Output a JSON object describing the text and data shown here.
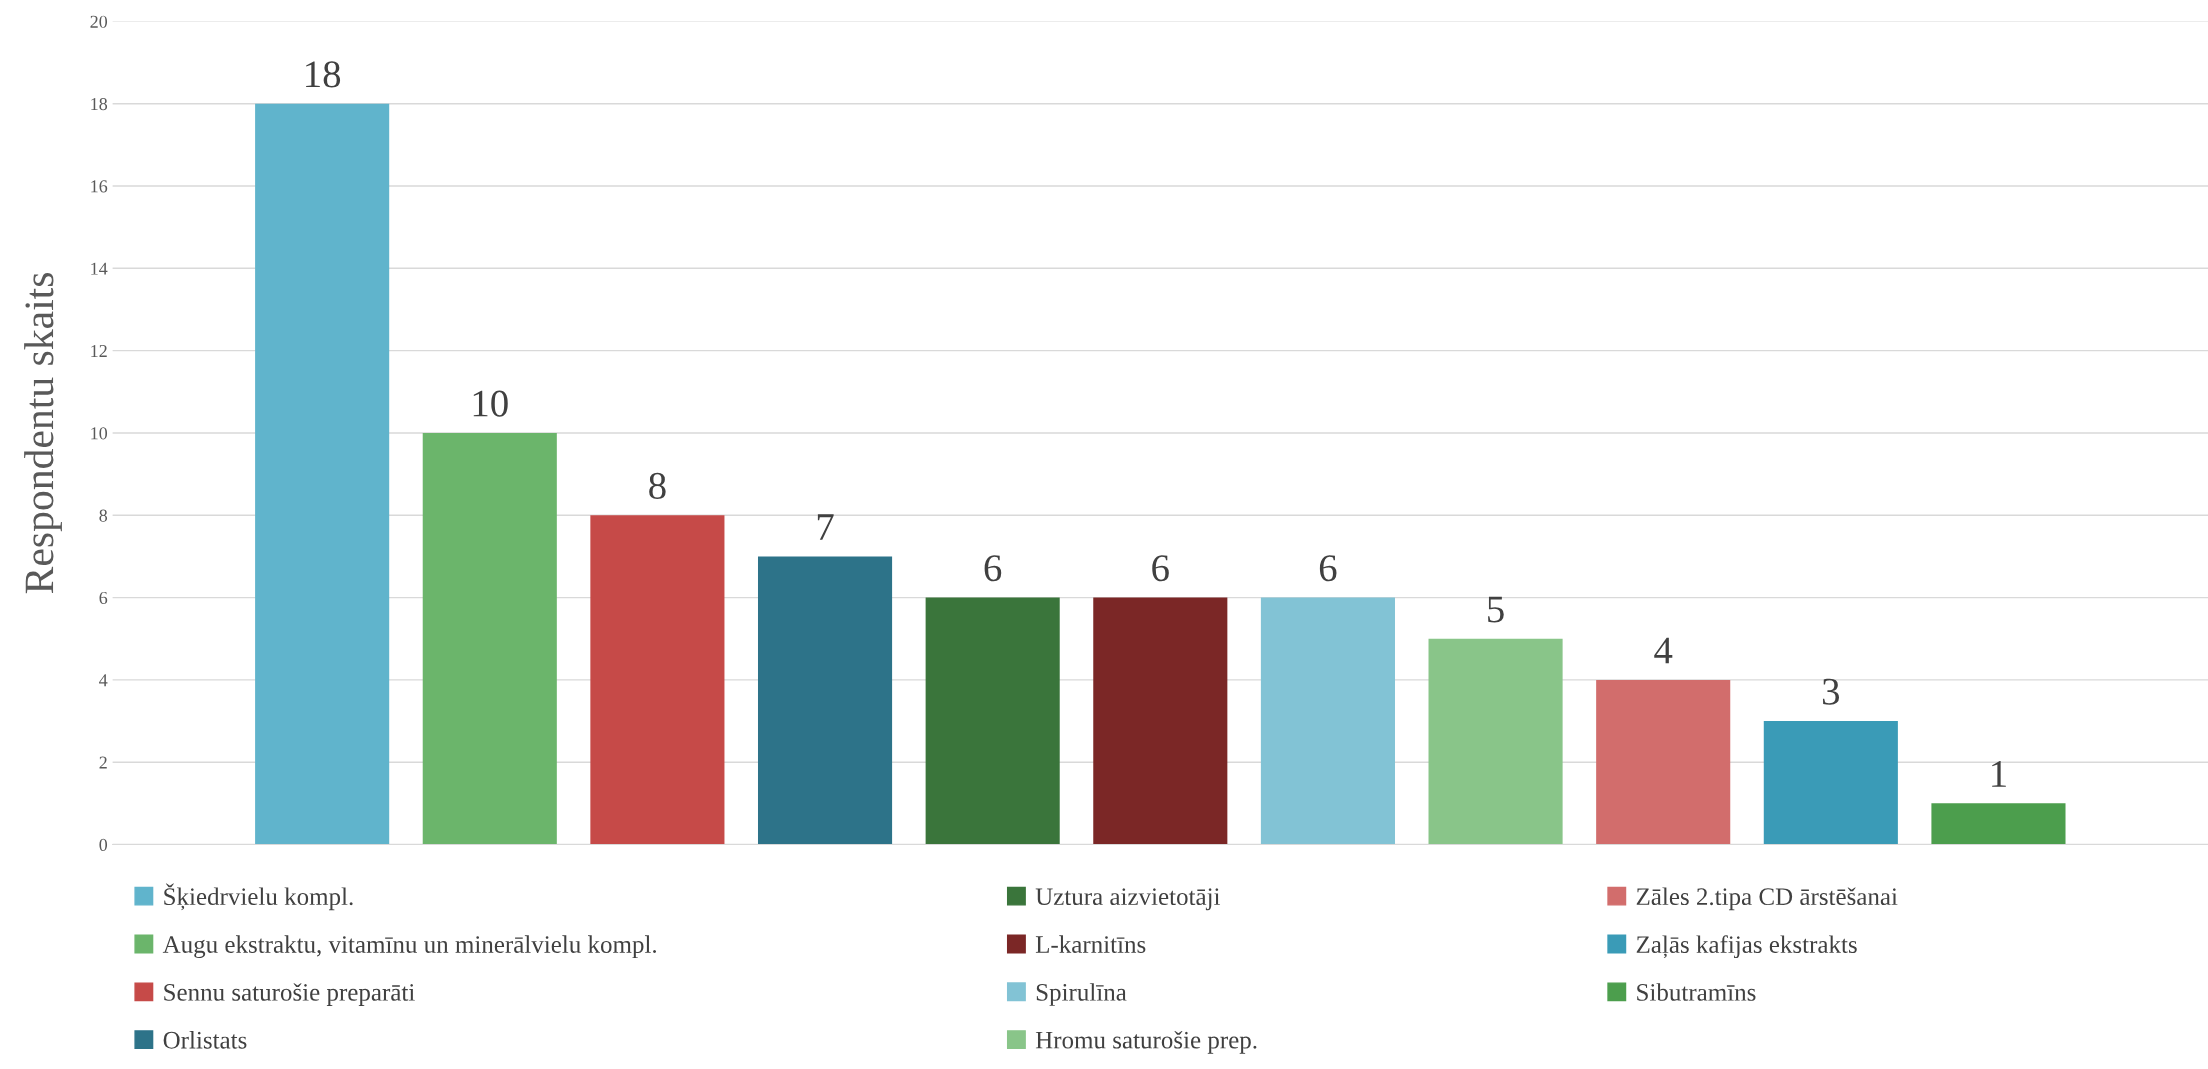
{
  "chart_data": {
    "type": "bar",
    "ylabel": "Respondentu skaits",
    "categories": [
      null
    ],
    "series": [
      {
        "name": "Šķiedrvielu kompl.",
        "color": "#60b4cc",
        "values": [
          18
        ]
      },
      {
        "name": "Augu ekstraktu, vitamīnu un minerālvielu kompl.",
        "color": "#6bb56b",
        "values": [
          10
        ]
      },
      {
        "name": "Sennu saturošie preparāti",
        "color": "#c64a48",
        "values": [
          8
        ]
      },
      {
        "name": "Orlistats",
        "color": "#2d7389",
        "values": [
          7
        ]
      },
      {
        "name": "Uztura aizvietotāji",
        "color": "#3a753b",
        "values": [
          6
        ]
      },
      {
        "name": "L-karnitīns",
        "color": "#7b2726",
        "values": [
          6
        ]
      },
      {
        "name": "Spirulīna",
        "color": "#82c3d5",
        "values": [
          6
        ]
      },
      {
        "name": "Hromu saturošie prep.",
        "color": "#89c589",
        "values": [
          5
        ]
      },
      {
        "name": "Zāles 2.tipa CD ārstēšanai",
        "color": "#d26d6c",
        "values": [
          4
        ]
      },
      {
        "name": "Zaļās kafijas ekstrakts",
        "color": "#3a9bb7",
        "values": [
          3
        ]
      },
      {
        "name": "Sibutramīns",
        "color": "#4c9e4d",
        "values": [
          1
        ]
      }
    ],
    "ylim": [
      0,
      20
    ],
    "yticks": [
      0,
      2,
      4,
      6,
      8,
      10,
      12,
      14,
      16,
      18,
      20
    ],
    "grid": "y",
    "legend": "bottom",
    "data_labels": true
  }
}
